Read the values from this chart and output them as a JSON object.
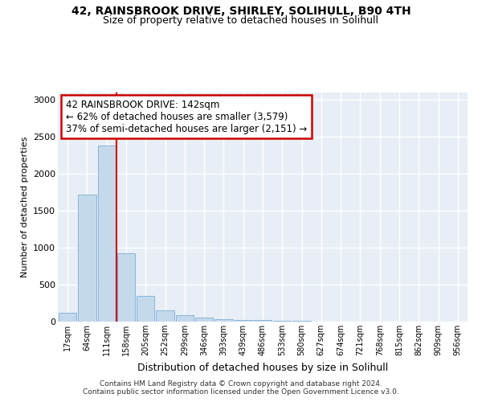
{
  "title1": "42, RAINSBROOK DRIVE, SHIRLEY, SOLIHULL, B90 4TH",
  "title2": "Size of property relative to detached houses in Solihull",
  "xlabel": "Distribution of detached houses by size in Solihull",
  "ylabel": "Number of detached properties",
  "bar_color": "#c5d9ed",
  "bar_edge_color": "#7aafd4",
  "annotation_line_color": "#cc0000",
  "annotation_box_color": "#cc0000",
  "annotation_text": "42 RAINSBROOK DRIVE: 142sqm\n← 62% of detached houses are smaller (3,579)\n37% of semi-detached houses are larger (2,151) →",
  "property_sqm": 142,
  "categories": [
    "17sqm",
    "64sqm",
    "111sqm",
    "158sqm",
    "205sqm",
    "252sqm",
    "299sqm",
    "346sqm",
    "393sqm",
    "439sqm",
    "486sqm",
    "533sqm",
    "580sqm",
    "627sqm",
    "674sqm",
    "721sqm",
    "768sqm",
    "815sqm",
    "862sqm",
    "909sqm",
    "956sqm"
  ],
  "values": [
    125,
    1720,
    2380,
    920,
    345,
    155,
    90,
    50,
    35,
    25,
    20,
    15,
    10,
    0,
    0,
    0,
    0,
    0,
    0,
    0,
    0
  ],
  "ylim": [
    0,
    3100
  ],
  "yticks": [
    0,
    500,
    1000,
    1500,
    2000,
    2500,
    3000
  ],
  "footer": "Contains HM Land Registry data © Crown copyright and database right 2024.\nContains public sector information licensed under the Open Government Licence v3.0.",
  "background_color": "#e8eef5"
}
